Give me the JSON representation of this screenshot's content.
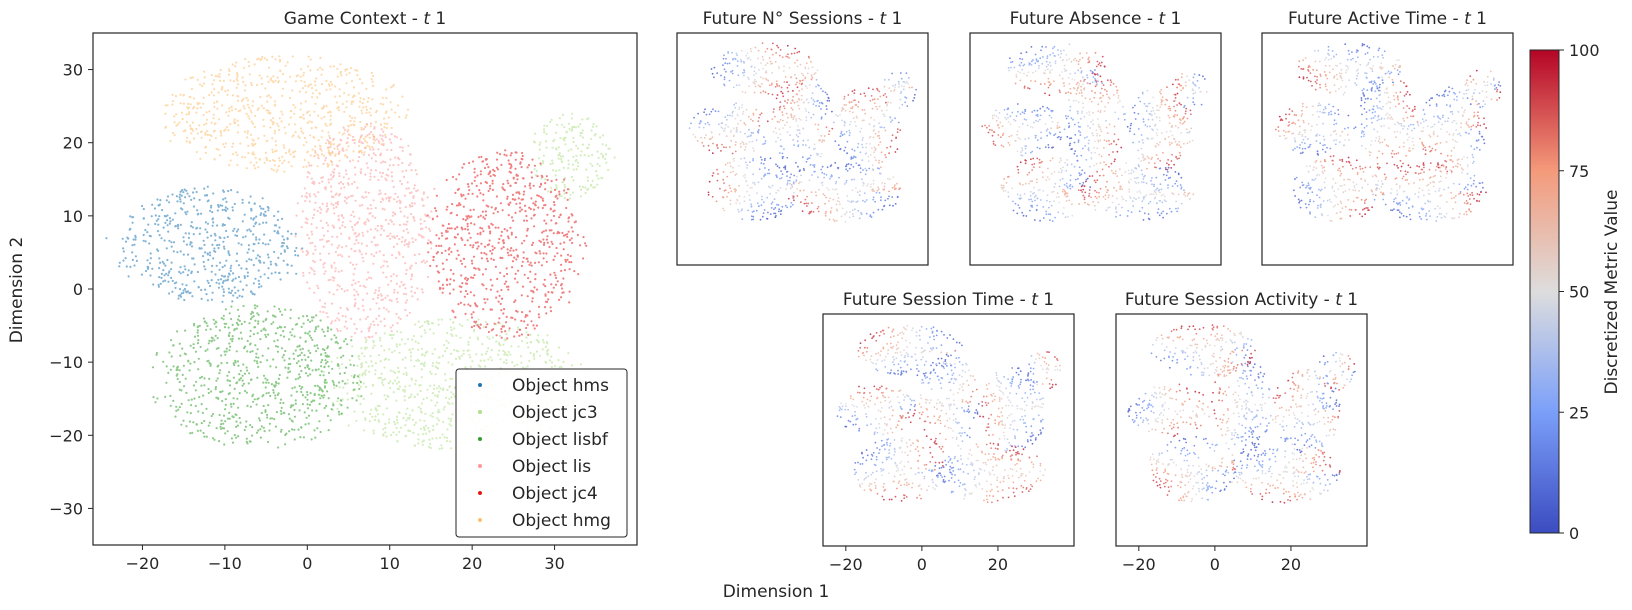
{
  "figure": {
    "shared_xlabel": "Dimension 1",
    "colorbar": {
      "label": "Discretized Metric Value",
      "ticks": [
        "0",
        "25",
        "50",
        "75",
        "100"
      ],
      "range": [
        0,
        100
      ],
      "colormap": "coolwarm",
      "colors": [
        "#3b4cc0",
        "#7b9ff9",
        "#dddddd",
        "#f49a7b",
        "#b40426"
      ]
    }
  },
  "chart_data": [
    {
      "type": "scatter",
      "title": "Game Context - t 1",
      "title_main": "Game Context - ",
      "title_italic": "t",
      "title_tail": " 1",
      "xlabel": "",
      "ylabel": "Dimension 2",
      "xlim": [
        -26,
        40
      ],
      "ylim": [
        -35,
        35
      ],
      "xticks": [
        -20,
        -10,
        0,
        10,
        20,
        30
      ],
      "xtick_labels": [
        "−20",
        "−10",
        "0",
        "10",
        "20",
        "30"
      ],
      "yticks": [
        30,
        20,
        10,
        0,
        -10,
        -20,
        -30
      ],
      "ytick_labels": [
        "30",
        "20",
        "10",
        "0",
        "−10",
        "−20",
        "−30"
      ],
      "legend_position": "lower-right",
      "series": [
        {
          "name": "Object hms",
          "color": "#1f77b4",
          "clusters": [
            {
              "cx": -12,
              "cy": 6,
              "rx": 11,
              "ry": 8
            }
          ]
        },
        {
          "name": "Object jc3",
          "color": "#b2df8a",
          "clusters": [
            {
              "cx": 18,
              "cy": -13,
              "rx": 15,
              "ry": 9
            },
            {
              "cx": 32,
              "cy": 18,
              "rx": 5,
              "ry": 6
            }
          ]
        },
        {
          "name": "Object lisbf",
          "color": "#33a02c",
          "clusters": [
            {
              "cx": -6,
              "cy": -12,
              "rx": 12,
              "ry": 10
            }
          ]
        },
        {
          "name": "Object lis",
          "color": "#fb9a99",
          "clusters": [
            {
              "cx": 7,
              "cy": 8,
              "rx": 8,
              "ry": 15
            }
          ]
        },
        {
          "name": "Object jc4",
          "color": "#e31a1c",
          "clusters": [
            {
              "cx": 24,
              "cy": 6,
              "rx": 9,
              "ry": 13
            }
          ]
        },
        {
          "name": "Object hmg",
          "color": "#fdbf6f",
          "clusters": [
            {
              "cx": -3,
              "cy": 24,
              "rx": 14,
              "ry": 8
            }
          ]
        }
      ]
    },
    {
      "type": "scatter",
      "title": "Future N° Sessions - t 1",
      "title_main": "Future N° Sessions - ",
      "title_italic": "t",
      "title_tail": " 1",
      "colormap": "coolwarm",
      "xlim": [
        -26,
        40
      ],
      "ylim": [
        -35,
        35
      ]
    },
    {
      "type": "scatter",
      "title": "Future Absence - t 1",
      "title_main": "Future Absence - ",
      "title_italic": "t",
      "title_tail": " 1",
      "colormap": "coolwarm",
      "xlim": [
        -26,
        40
      ],
      "ylim": [
        -35,
        35
      ]
    },
    {
      "type": "scatter",
      "title": "Future Active Time - t 1",
      "title_main": "Future Active Time - ",
      "title_italic": "t",
      "title_tail": " 1",
      "colormap": "coolwarm",
      "xlim": [
        -26,
        40
      ],
      "ylim": [
        -35,
        35
      ]
    },
    {
      "type": "scatter",
      "title": "Future Session Time - t 1",
      "title_main": "Future Session Time - ",
      "title_italic": "t",
      "title_tail": " 1",
      "colormap": "coolwarm",
      "xlim": [
        -26,
        40
      ],
      "ylim": [
        -35,
        35
      ],
      "xticks": [
        -20,
        0,
        20
      ],
      "xtick_labels": [
        "−20",
        "0",
        "20"
      ]
    },
    {
      "type": "scatter",
      "title": "Future Session Activity - t 1",
      "title_main": "Future Session Activity - ",
      "title_italic": "t",
      "title_tail": " 1",
      "colormap": "coolwarm",
      "xlim": [
        -26,
        40
      ],
      "ylim": [
        -35,
        35
      ],
      "xticks": [
        -20,
        0,
        20
      ],
      "xtick_labels": [
        "−20",
        "0",
        "20"
      ]
    }
  ]
}
